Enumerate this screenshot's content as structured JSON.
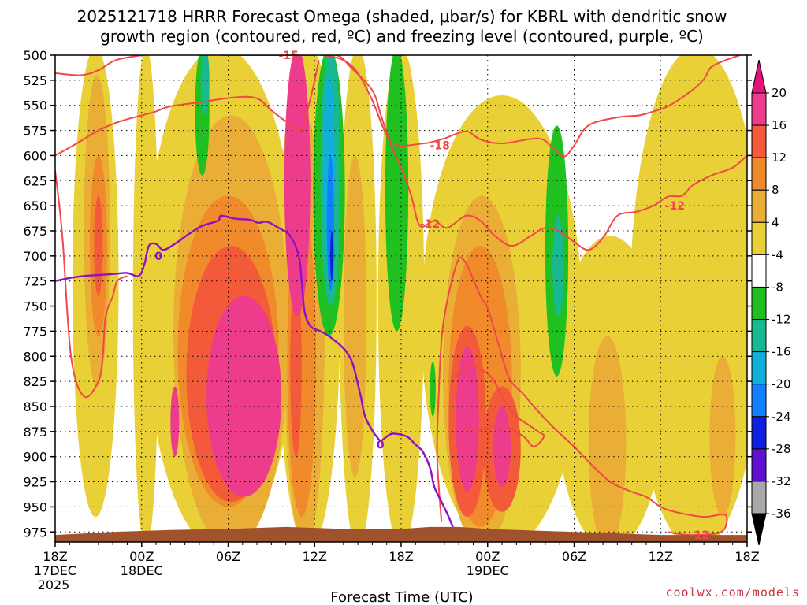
{
  "chart_data": {
    "type": "contour",
    "title": "2025121718 HRRR Forecast Omega (shaded, μbar/s) for KBRL with dendritic snow growth region (contoured, red, ºC) and freezing level (contoured, purple, ºC)",
    "title_lines": [
      "2025121718 HRRR Forecast Omega (shaded, μbar/s) for KBRL with dendritic snow",
      "growth region (contoured, red, ºC) and freezing level (contoured, purple, ºC)"
    ],
    "xlabel": "Forecast Time (UTC)",
    "ylabel": "",
    "credit": "coolwx.com/models",
    "y_axis": {
      "unit": "hPa",
      "ticks": [
        500,
        525,
        550,
        575,
        600,
        625,
        650,
        675,
        700,
        725,
        750,
        775,
        800,
        825,
        850,
        875,
        900,
        925,
        950,
        975
      ],
      "range": [
        500,
        985
      ]
    },
    "x_axis": {
      "unit": "forecast hour",
      "range": [
        0,
        48
      ],
      "ticks": [
        {
          "hour": 0,
          "label": "18Z",
          "sub": "17DEC",
          "sub2": "2025"
        },
        {
          "hour": 6,
          "label": "00Z",
          "sub": "18DEC",
          "sub2": ""
        },
        {
          "hour": 12,
          "label": "06Z",
          "sub": "",
          "sub2": ""
        },
        {
          "hour": 18,
          "label": "12Z",
          "sub": "",
          "sub2": ""
        },
        {
          "hour": 24,
          "label": "18Z",
          "sub": "",
          "sub2": ""
        },
        {
          "hour": 30,
          "label": "00Z",
          "sub": "19DEC",
          "sub2": ""
        },
        {
          "hour": 36,
          "label": "06Z",
          "sub": "",
          "sub2": ""
        },
        {
          "hour": 42,
          "label": "12Z",
          "sub": "",
          "sub2": ""
        },
        {
          "hour": 48,
          "label": "18Z",
          "sub": "",
          "sub2": ""
        }
      ]
    },
    "colorbar": {
      "labels": [
        "20",
        "16",
        "12",
        "8",
        "4",
        "-4",
        "-8",
        "-12",
        "-16",
        "-20",
        "-24",
        "-28",
        "-32",
        "-36"
      ],
      "colors": [
        "#ee3c8c",
        "#f25a3a",
        "#f08a2a",
        "#eaae36",
        "#e8d036",
        "#ffffff",
        "#20c020",
        "#18b890",
        "#10b0d8",
        "#1080ff",
        "#1020e0",
        "#6010d0",
        "#9a10d0",
        "#a8a8a8"
      ],
      "top_color": "#e8107a",
      "bottom_color": "#000000"
    },
    "shading_colors": {
      "p4": "#e8d036",
      "p8": "#eaae36",
      "p12": "#f08a2a",
      "p16": "#f25a3a",
      "p20": "#ee3c8c",
      "p24": "#e8107a",
      "n4": "#20c020",
      "n8": "#18b890",
      "n12": "#10b0d8",
      "n16": "#1080ff",
      "n20": "#1020e0"
    },
    "omega_regions": [
      {
        "level": "p4",
        "cx": 2.8,
        "p_top": 500,
        "p_bot": 960,
        "hw": 1.6
      },
      {
        "level": "p4",
        "cx": 6.3,
        "p_top": 500,
        "p_bot": 985,
        "hw": 0.9
      },
      {
        "level": "p4",
        "cx": 11.5,
        "p_top": 500,
        "p_bot": 985,
        "hw": 5.3
      },
      {
        "level": "p4",
        "cx": 17.6,
        "p_top": 500,
        "p_bot": 985,
        "hw": 2.2
      },
      {
        "level": "p4",
        "cx": 21.0,
        "p_top": 500,
        "p_bot": 985,
        "hw": 1.3
      },
      {
        "level": "p4",
        "cx": 24.0,
        "p_top": 500,
        "p_bot": 985,
        "hw": 1.6
      },
      {
        "level": "p4",
        "cx": 31.0,
        "p_top": 540,
        "p_bot": 985,
        "hw": 5.6
      },
      {
        "level": "p4",
        "cx": 38.5,
        "p_top": 680,
        "p_bot": 985,
        "hw": 3.8
      },
      {
        "level": "p4",
        "cx": 44.5,
        "p_top": 500,
        "p_bot": 985,
        "hw": 4.6
      },
      {
        "level": "p8",
        "cx": 2.9,
        "p_top": 520,
        "p_bot": 830,
        "hw": 0.9
      },
      {
        "level": "p8",
        "cx": 12.2,
        "p_top": 560,
        "p_bot": 985,
        "hw": 4.0
      },
      {
        "level": "p8",
        "cx": 17.3,
        "p_top": 560,
        "p_bot": 985,
        "hw": 1.4
      },
      {
        "level": "p8",
        "cx": 20.8,
        "p_top": 600,
        "p_bot": 920,
        "hw": 0.8
      },
      {
        "level": "p8",
        "cx": 29.6,
        "p_top": 640,
        "p_bot": 985,
        "hw": 2.7
      },
      {
        "level": "p8",
        "cx": 38.3,
        "p_top": 780,
        "p_bot": 985,
        "hw": 1.3
      },
      {
        "level": "p8",
        "cx": 46.3,
        "p_top": 800,
        "p_bot": 960,
        "hw": 0.9
      },
      {
        "level": "p12",
        "cx": 3.0,
        "p_top": 600,
        "p_bot": 780,
        "hw": 0.6
      },
      {
        "level": "p12",
        "cx": 12.0,
        "p_top": 640,
        "p_bot": 950,
        "hw": 3.5
      },
      {
        "level": "p12",
        "cx": 17.1,
        "p_top": 650,
        "p_bot": 960,
        "hw": 1.0
      },
      {
        "level": "p12",
        "cx": 29.5,
        "p_top": 690,
        "p_bot": 970,
        "hw": 2.2
      },
      {
        "level": "p16",
        "cx": 3.0,
        "p_top": 640,
        "p_bot": 740,
        "hw": 0.3
      },
      {
        "level": "p16",
        "cx": 12.2,
        "p_top": 690,
        "p_bot": 945,
        "hw": 3.1
      },
      {
        "level": "p16",
        "cx": 16.7,
        "p_top": 720,
        "p_bot": 900,
        "hw": 0.4
      },
      {
        "level": "p16",
        "cx": 28.6,
        "p_top": 770,
        "p_bot": 960,
        "hw": 1.3
      },
      {
        "level": "p16",
        "cx": 31.0,
        "p_top": 830,
        "p_bot": 955,
        "hw": 1.3
      },
      {
        "level": "p20",
        "cx": 16.8,
        "p_top": 500,
        "p_bot": 760,
        "hw": 0.9
      },
      {
        "level": "p20",
        "cx": 13.1,
        "p_top": 740,
        "p_bot": 940,
        "hw": 2.6
      },
      {
        "level": "p20",
        "cx": 8.3,
        "p_top": 830,
        "p_bot": 900,
        "hw": 0.3
      },
      {
        "level": "p20",
        "cx": 28.6,
        "p_top": 790,
        "p_bot": 935,
        "hw": 0.8
      },
      {
        "level": "p20",
        "cx": 31.0,
        "p_top": 850,
        "p_bot": 930,
        "hw": 0.6
      },
      {
        "level": "n4",
        "cx": 10.2,
        "p_top": 500,
        "p_bot": 620,
        "hw": 0.5
      },
      {
        "level": "n4",
        "cx": 19.0,
        "p_top": 500,
        "p_bot": 780,
        "hw": 1.1
      },
      {
        "level": "n4",
        "cx": 23.7,
        "p_top": 500,
        "p_bot": 775,
        "hw": 0.8
      },
      {
        "level": "n4",
        "cx": 26.2,
        "p_top": 805,
        "p_bot": 860,
        "hw": 0.2
      },
      {
        "level": "n4",
        "cx": 34.8,
        "p_top": 570,
        "p_bot": 820,
        "hw": 0.8
      },
      {
        "level": "n8",
        "cx": 10.4,
        "p_top": 500,
        "p_bot": 560,
        "hw": 0.3
      },
      {
        "level": "n8",
        "cx": 19.1,
        "p_top": 500,
        "p_bot": 750,
        "hw": 0.7
      },
      {
        "level": "n8",
        "cx": 34.9,
        "p_top": 660,
        "p_bot": 760,
        "hw": 0.4
      },
      {
        "level": "n12",
        "cx": 19.0,
        "p_top": 520,
        "p_bot": 700,
        "hw": 0.4
      },
      {
        "level": "n16",
        "cx": 19.1,
        "p_top": 600,
        "p_bot": 735,
        "hw": 0.25
      },
      {
        "level": "n20",
        "cx": 19.2,
        "p_top": 675,
        "p_bot": 725,
        "hw": 0.12
      }
    ],
    "isotherms_red": [
      {
        "points": [
          [
            0,
            518
          ],
          [
            1.8,
            520
          ],
          [
            3,
            515
          ],
          [
            4.2,
            505
          ],
          [
            6,
            500
          ]
        ]
      },
      {
        "points": [
          [
            0,
            600
          ],
          [
            1.5,
            588
          ],
          [
            3,
            575
          ],
          [
            4.5,
            566
          ],
          [
            6,
            560
          ],
          [
            7,
            556
          ],
          [
            8,
            551
          ],
          [
            10,
            547
          ],
          [
            12.5,
            542
          ],
          [
            14,
            543
          ],
          [
            15,
            555
          ],
          [
            16,
            566
          ],
          [
            17,
            575
          ],
          [
            17.5,
            555
          ],
          [
            18,
            525
          ],
          [
            18.3,
            505
          ]
        ]
      },
      {
        "points": [
          [
            13.5,
            500
          ],
          [
            15.5,
            500
          ],
          [
            17.6,
            500
          ],
          [
            18.6,
            500
          ],
          [
            20,
            505
          ],
          [
            21,
            518
          ],
          [
            22,
            545
          ],
          [
            23,
            580
          ],
          [
            23.8,
            590
          ],
          [
            25.5,
            588
          ],
          [
            26,
            587
          ],
          [
            27,
            583
          ],
          [
            28.5,
            576
          ],
          [
            29.5,
            584
          ],
          [
            31,
            588
          ],
          [
            33.5,
            583
          ],
          [
            34.5,
            592
          ],
          [
            35.3,
            601
          ],
          [
            36,
            590
          ],
          [
            37,
            570
          ],
          [
            39,
            562
          ],
          [
            40.5,
            560
          ],
          [
            41.5,
            556
          ],
          [
            42.5,
            551
          ],
          [
            44,
            537
          ],
          [
            45,
            524
          ],
          [
            45.5,
            512
          ],
          [
            46.5,
            505
          ],
          [
            47.5,
            500
          ]
        ]
      },
      {
        "points": [
          [
            0,
            615
          ],
          [
            0.5,
            680
          ],
          [
            1.1,
            800
          ],
          [
            2,
            840
          ],
          [
            3,
            825
          ],
          [
            3.3,
            800
          ],
          [
            3.5,
            760
          ],
          [
            4,
            740
          ],
          [
            4.3,
            725
          ],
          [
            5,
            720
          ]
        ]
      },
      {
        "points": [
          [
            11.5,
            500
          ],
          [
            14,
            500
          ],
          [
            17.5,
            500
          ],
          [
            19.5,
            500
          ],
          [
            20.5,
            512
          ],
          [
            22,
            535
          ],
          [
            22.6,
            560
          ],
          [
            23.3,
            590
          ],
          [
            24,
            612
          ],
          [
            24.7,
            640
          ],
          [
            25.3,
            670
          ],
          [
            26.3,
            665
          ],
          [
            27.2,
            672
          ],
          [
            28.5,
            660
          ],
          [
            29.5,
            665
          ],
          [
            30.5,
            680
          ],
          [
            31.7,
            690
          ],
          [
            33,
            680
          ],
          [
            34,
            672
          ],
          [
            35,
            676
          ],
          [
            36,
            686
          ],
          [
            37,
            694
          ],
          [
            38,
            682
          ],
          [
            39,
            660
          ],
          [
            40.3,
            656
          ],
          [
            41.5,
            650
          ],
          [
            42.5,
            641
          ],
          [
            43.5,
            640
          ],
          [
            44.2,
            630
          ],
          [
            45.5,
            620
          ],
          [
            47,
            612
          ],
          [
            48,
            600
          ]
        ]
      },
      {
        "points": [
          [
            26.8,
            965
          ],
          [
            26.5,
            900
          ],
          [
            26.6,
            840
          ],
          [
            26.9,
            770
          ],
          [
            27.8,
            710
          ],
          [
            28.4,
            705
          ],
          [
            29.5,
            740
          ],
          [
            30,
            752
          ],
          [
            30.8,
            790
          ],
          [
            31.5,
            822
          ],
          [
            32.5,
            838
          ],
          [
            33.2,
            850
          ],
          [
            34.5,
            870
          ],
          [
            36,
            890
          ],
          [
            37,
            905
          ],
          [
            38.5,
            925
          ],
          [
            40,
            935
          ],
          [
            41,
            940
          ],
          [
            42,
            950
          ],
          [
            43,
            955
          ],
          [
            45,
            960
          ],
          [
            46.5,
            958
          ],
          [
            46.2,
            975
          ],
          [
            44,
            978
          ],
          [
            42.5,
            975
          ]
        ]
      },
      {
        "points": [
          [
            27.8,
            820
          ],
          [
            28.8,
            810
          ],
          [
            30.2,
            820
          ],
          [
            31.2,
            845
          ],
          [
            32,
            860
          ],
          [
            32.8,
            868
          ],
          [
            33.5,
            875
          ],
          [
            33.9,
            880
          ],
          [
            33.2,
            890
          ],
          [
            32.5,
            880
          ],
          [
            31.2,
            870
          ],
          [
            30.2,
            870
          ],
          [
            29.2,
            875
          ],
          [
            28.4,
            870
          ]
        ]
      }
    ],
    "isotherm_labels_red": [
      {
        "text": "-15",
        "h": 15.5,
        "p": 500
      },
      {
        "text": "-18",
        "h": 26.0,
        "p": 590
      },
      {
        "text": "-12",
        "h": 25.3,
        "p": 668
      },
      {
        "text": "-12",
        "h": 42.3,
        "p": 650
      },
      {
        "text": "-12",
        "h": 44.0,
        "p": 978
      }
    ],
    "freezing_level": {
      "points": [
        [
          0,
          725
        ],
        [
          1,
          722
        ],
        [
          2,
          720
        ],
        [
          3,
          719
        ],
        [
          4,
          718
        ],
        [
          5,
          717
        ],
        [
          5.8,
          720
        ],
        [
          6.2,
          708
        ],
        [
          6.5,
          690
        ],
        [
          7,
          688
        ],
        [
          7.5,
          694
        ],
        [
          8.3,
          688
        ],
        [
          9.3,
          678
        ],
        [
          10.2,
          670
        ],
        [
          11.3,
          665
        ],
        [
          11.5,
          660
        ],
        [
          12.5,
          663
        ],
        [
          13.5,
          664
        ],
        [
          14.1,
          667
        ],
        [
          14.7,
          666
        ],
        [
          15.5,
          672
        ],
        [
          16.3,
          680
        ],
        [
          16.9,
          700
        ],
        [
          17.1,
          725
        ],
        [
          17.3,
          755
        ],
        [
          17.7,
          770
        ],
        [
          18.4,
          775
        ],
        [
          19,
          780
        ],
        [
          20,
          792
        ],
        [
          20.4,
          800
        ],
        [
          20.7,
          810
        ],
        [
          21.2,
          840
        ],
        [
          21.5,
          860
        ],
        [
          22.0,
          874
        ],
        [
          22.3,
          880
        ],
        [
          22.6,
          884
        ],
        [
          23.1,
          879
        ],
        [
          23.5,
          877
        ],
        [
          24.4,
          880
        ],
        [
          25,
          888
        ],
        [
          25.5,
          895
        ],
        [
          26,
          911
        ],
        [
          26.3,
          930
        ],
        [
          26.8,
          945
        ],
        [
          27.3,
          960
        ],
        [
          27.8,
          978
        ]
      ],
      "labels": [
        {
          "text": "0",
          "h": 6.9,
          "p": 700
        },
        {
          "text": "0",
          "h": 22.3,
          "p": 888
        }
      ]
    },
    "terrain": {
      "base_p": 985,
      "top_profile": [
        [
          0,
          978
        ],
        [
          4,
          975
        ],
        [
          8,
          973
        ],
        [
          12,
          972
        ],
        [
          16,
          970
        ],
        [
          20,
          972
        ],
        [
          24,
          972
        ],
        [
          26,
          970
        ],
        [
          28,
          970
        ],
        [
          30,
          972
        ],
        [
          34,
          974
        ],
        [
          38,
          976
        ],
        [
          42,
          978
        ],
        [
          46,
          978
        ],
        [
          48,
          978
        ]
      ],
      "color": "#a0522d"
    }
  }
}
